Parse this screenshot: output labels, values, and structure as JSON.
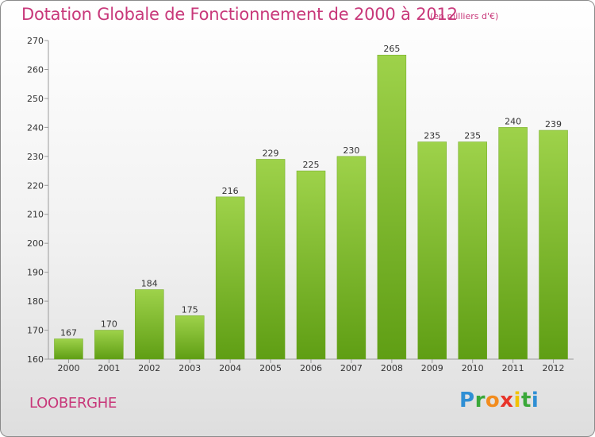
{
  "chart_data": {
    "type": "bar",
    "title": "Dotation Globale de Fonctionnement de 2000 à 2012",
    "subtitle": "(en milliers d'€)",
    "categories": [
      "2000",
      "2001",
      "2002",
      "2003",
      "2004",
      "2005",
      "2006",
      "2007",
      "2008",
      "2009",
      "2010",
      "2011",
      "2012"
    ],
    "values": [
      167,
      170,
      184,
      175,
      216,
      229,
      225,
      230,
      265,
      235,
      235,
      240,
      239
    ],
    "ylim": [
      160,
      270
    ],
    "yticks": [
      160,
      170,
      180,
      190,
      200,
      210,
      220,
      230,
      240,
      250,
      260,
      270
    ],
    "grid": false,
    "legend": "none",
    "bar_color": "#86c232"
  },
  "commune": "LOOBERGHE",
  "logo": {
    "letters": [
      "P",
      "r",
      "o",
      "x",
      "i",
      "t",
      "i"
    ],
    "colors": [
      "#2f8fd4",
      "#3aa83a",
      "#f28c1e",
      "#e8342a",
      "#f2c200",
      "#3aa83a",
      "#2f8fd4"
    ]
  }
}
